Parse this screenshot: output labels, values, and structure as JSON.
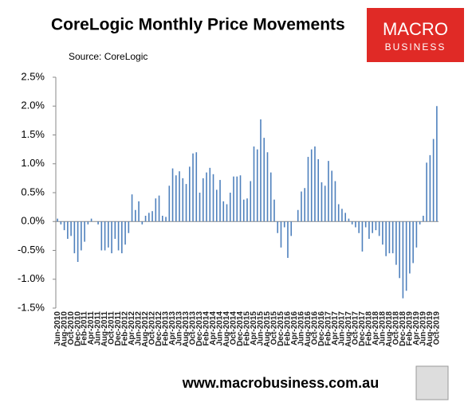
{
  "chart_data": {
    "type": "bar",
    "title": "CoreLogic Monthly Price Movements",
    "subtitle": "Source: CoreLogic",
    "logo": {
      "line1": "MACRO",
      "line2": "BUSINESS"
    },
    "footer": "www.macrobusiness.com.au",
    "color": "#4f81bd",
    "categories": [
      "Jun-2010",
      null,
      "Aug-2010",
      null,
      "Oct-2010",
      null,
      "Dec-2010",
      null,
      "Feb-2011",
      null,
      "Apr-2011",
      null,
      "Jun-2011",
      null,
      "Aug-2011",
      null,
      "Oct-2011",
      null,
      "Dec-2011",
      null,
      "Feb-2012",
      null,
      "Apr-2012",
      null,
      "Jun-2012",
      null,
      "Aug-2012",
      null,
      "Oct-2012",
      null,
      "Dec-2012",
      null,
      "Feb-2013",
      null,
      "Apr-2013",
      null,
      "Jun-2013",
      null,
      "Aug-2013",
      null,
      "Oct-2013",
      null,
      "Dec-2013",
      null,
      "Feb-2014",
      null,
      "Apr-2014",
      null,
      "Jun-2014",
      null,
      "Aug-2014",
      null,
      "Oct-2014",
      null,
      "Dec-2014",
      null,
      "Feb-2015",
      null,
      "Apr-2015",
      null,
      "Jun-2015",
      null,
      "Aug-2015",
      null,
      "Oct-2015",
      null,
      "Dec-2015",
      null,
      "Feb-2016",
      null,
      "Apr-2016",
      null,
      "Jun-2016",
      null,
      "Aug-2016",
      null,
      "Oct-2016",
      null,
      "Dec-2016",
      null,
      "Feb-2017",
      null,
      "Apr-2017",
      null,
      "Jun-2017",
      null,
      "Aug-2017",
      null,
      "Oct-2017",
      null,
      "Dec-2017",
      null,
      "Feb-2018",
      null,
      "Apr-2018",
      null,
      "Jun-2018",
      null,
      "Aug-2018",
      null,
      "Oct-2018",
      null,
      "Dec-2018",
      null,
      "Feb-2019",
      null,
      "Apr-2019",
      null,
      "Jun-2019",
      null,
      "Aug-2019",
      null,
      "Oct-2019"
    ],
    "values": [
      0.05,
      -0.05,
      -0.15,
      -0.3,
      -0.25,
      -0.55,
      -0.7,
      -0.5,
      -0.35,
      -0.05,
      0.05,
      0.0,
      -0.05,
      -0.5,
      -0.5,
      -0.45,
      -0.55,
      -0.3,
      -0.5,
      -0.55,
      -0.4,
      -0.2,
      0.47,
      0.2,
      0.35,
      -0.05,
      0.1,
      0.15,
      0.18,
      0.4,
      0.45,
      0.1,
      0.08,
      0.62,
      0.92,
      0.8,
      0.87,
      0.75,
      0.65,
      0.95,
      1.18,
      1.2,
      0.5,
      0.75,
      0.85,
      0.93,
      0.82,
      0.55,
      0.72,
      0.35,
      0.3,
      0.5,
      0.78,
      0.78,
      0.8,
      0.38,
      0.4,
      0.7,
      1.3,
      1.25,
      1.77,
      1.45,
      1.2,
      0.85,
      0.38,
      -0.2,
      -0.45,
      -0.1,
      -0.63,
      -0.25,
      0.0,
      0.2,
      0.52,
      0.58,
      1.12,
      1.25,
      1.3,
      1.08,
      0.68,
      0.62,
      1.05,
      0.88,
      0.7,
      0.3,
      0.22,
      0.15,
      0.05,
      -0.05,
      -0.1,
      -0.2,
      -0.52,
      -0.1,
      -0.3,
      -0.2,
      -0.15,
      -0.25,
      -0.4,
      -0.6,
      -0.55,
      -0.55,
      -0.75,
      -0.98,
      -1.33,
      -1.2,
      -0.9,
      -0.72,
      -0.45,
      -0.05,
      0.1,
      1.02,
      1.15,
      1.43,
      2.0
    ],
    "ylim": [
      -1.5,
      2.5
    ],
    "yticks": [
      {
        "value": -1.5,
        "label": "-1.5%"
      },
      {
        "value": -1.0,
        "label": "-1.0%"
      },
      {
        "value": -0.5,
        "label": "-0.5%"
      },
      {
        "value": 0,
        "label": "0.0%"
      },
      {
        "value": 0.5,
        "label": "0.5%"
      },
      {
        "value": 1.0,
        "label": "1.0%"
      },
      {
        "value": 1.5,
        "label": "1.5%"
      },
      {
        "value": 2.0,
        "label": "2.0%"
      },
      {
        "value": 2.5,
        "label": "2.5%"
      }
    ],
    "grid": false
  }
}
